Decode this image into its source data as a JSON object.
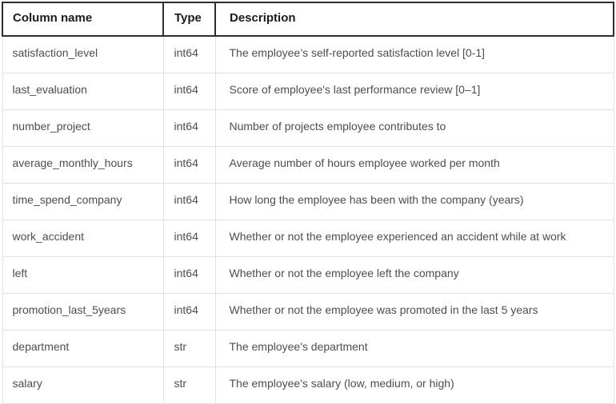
{
  "table": {
    "headers": {
      "name": "Column name",
      "type": "Type",
      "description": "Description"
    },
    "rows": [
      {
        "name": "satisfaction_level",
        "type": "int64",
        "description": "The employee’s self-reported satisfaction level [0-1]"
      },
      {
        "name": "last_evaluation",
        "type": "int64",
        "description": "Score of employee's last performance review [0–1]"
      },
      {
        "name": "number_project",
        "type": "int64",
        "description": "Number of projects employee contributes to"
      },
      {
        "name": "average_monthly_hours",
        "type": "int64",
        "description": "Average number of hours employee worked per month"
      },
      {
        "name": "time_spend_company",
        "type": "int64",
        "description": "How long the employee has been with the company (years)"
      },
      {
        "name": "work_accident",
        "type": "int64",
        "description": "Whether or not the employee experienced an accident while at work"
      },
      {
        "name": "left",
        "type": "int64",
        "description": "Whether or not the employee left the company"
      },
      {
        "name": "promotion_last_5years",
        "type": "int64",
        "description": "Whether or not the employee was promoted in the last 5 years"
      },
      {
        "name": "department",
        "type": "str",
        "description": "The employee's department"
      },
      {
        "name": "salary",
        "type": "str",
        "description": "The employee's salary (low, medium, or high)"
      }
    ]
  }
}
